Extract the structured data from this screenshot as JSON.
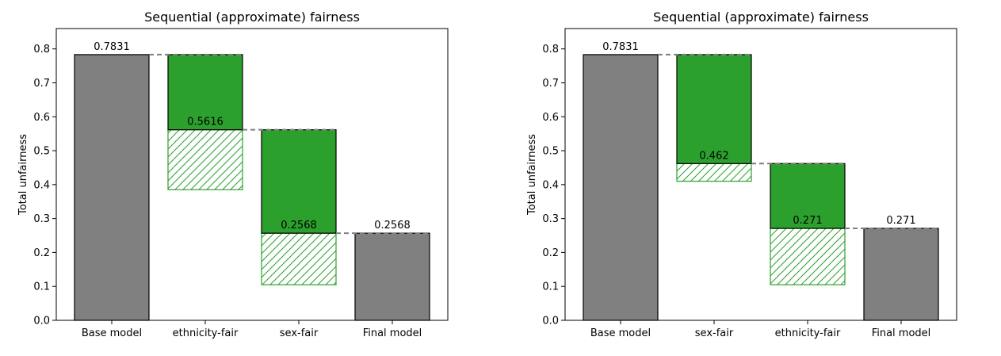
{
  "chart_data": [
    {
      "type": "bar",
      "title": "Sequential (approximate) fairness",
      "ylabel": "Total unfairness",
      "xlabel": "",
      "ylim": [
        0,
        0.86
      ],
      "yticks": [
        "0.0",
        "0.1",
        "0.2",
        "0.3",
        "0.4",
        "0.5",
        "0.6",
        "0.7",
        "0.8"
      ],
      "categories": [
        "Base model",
        "ethnicity-fair",
        "sex-fair",
        "Final model"
      ],
      "bars": [
        {
          "kind": "total",
          "value": 0.7831,
          "label": "0.7831"
        },
        {
          "kind": "step",
          "from": 0.7831,
          "to": 0.5616,
          "hatch_to": 0.385,
          "label": "0.5616"
        },
        {
          "kind": "step",
          "from": 0.5616,
          "to": 0.2568,
          "hatch_to": 0.105,
          "label": "0.2568"
        },
        {
          "kind": "total",
          "value": 0.2568,
          "label": "0.2568"
        }
      ],
      "colors": {
        "total": "#808080",
        "step": "#2ca02c",
        "connector": "#808080"
      }
    },
    {
      "type": "bar",
      "title": "Sequential (approximate) fairness",
      "ylabel": "Total unfairness",
      "xlabel": "",
      "ylim": [
        0,
        0.86
      ],
      "yticks": [
        "0.0",
        "0.1",
        "0.2",
        "0.3",
        "0.4",
        "0.5",
        "0.6",
        "0.7",
        "0.8"
      ],
      "categories": [
        "Base model",
        "sex-fair",
        "ethnicity-fair",
        "Final model"
      ],
      "bars": [
        {
          "kind": "total",
          "value": 0.7831,
          "label": "0.7831"
        },
        {
          "kind": "step",
          "from": 0.7831,
          "to": 0.462,
          "hatch_to": 0.41,
          "label": "0.462"
        },
        {
          "kind": "step",
          "from": 0.462,
          "to": 0.271,
          "hatch_to": 0.105,
          "label": "0.271"
        },
        {
          "kind": "total",
          "value": 0.271,
          "label": "0.271"
        }
      ],
      "colors": {
        "total": "#808080",
        "step": "#2ca02c",
        "connector": "#808080"
      }
    }
  ]
}
